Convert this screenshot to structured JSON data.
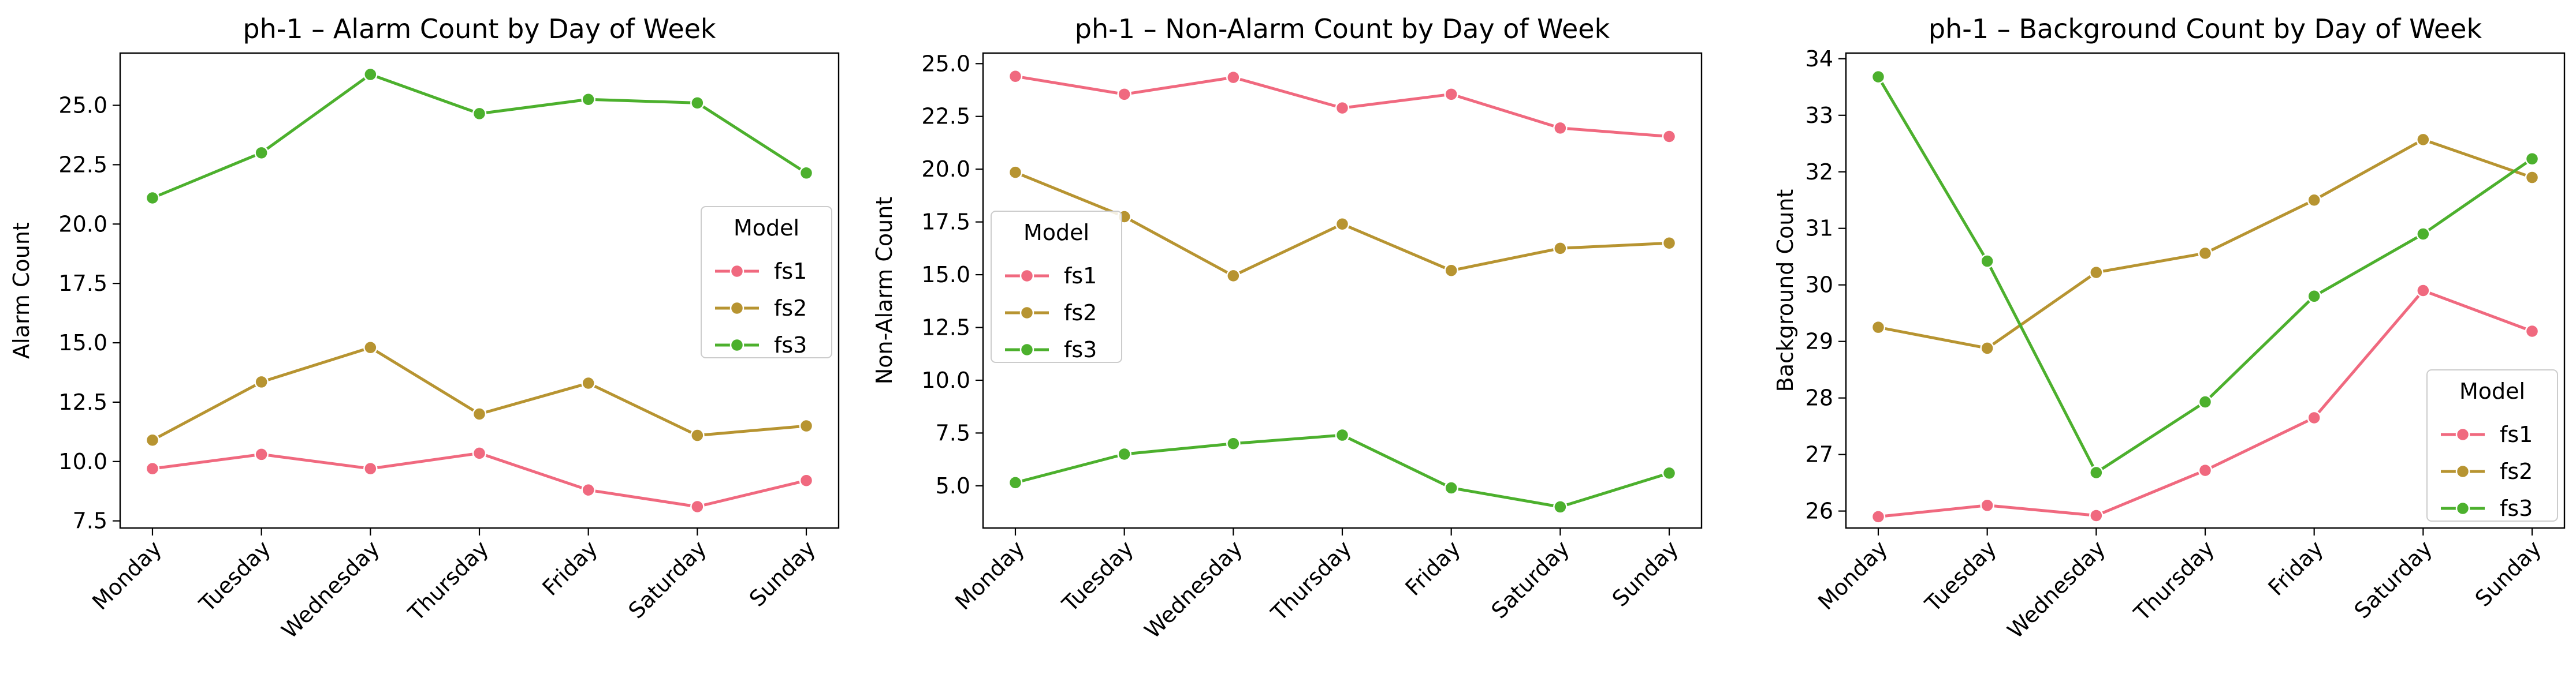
{
  "chart_data": [
    {
      "type": "line",
      "title": "ph-1 – Alarm Count by Day of Week",
      "xlabel": "",
      "ylabel": "Alarm Count",
      "categories": [
        "Monday",
        "Tuesday",
        "Wednesday",
        "Thursday",
        "Friday",
        "Saturday",
        "Sunday"
      ],
      "ylim": [
        7.2,
        27.2
      ],
      "yticks": [
        7.5,
        10.0,
        12.5,
        15.0,
        17.5,
        20.0,
        22.5,
        25.0
      ],
      "ytick_labels": [
        "7.5",
        "10.0",
        "12.5",
        "15.0",
        "17.5",
        "20.0",
        "22.5",
        "25.0"
      ],
      "legend": {
        "title": "Model",
        "placement": "center-right"
      },
      "grid": false,
      "series": [
        {
          "name": "fs1",
          "color": "#f0697f",
          "values": [
            9.7,
            10.3,
            9.7,
            10.35,
            8.8,
            8.1,
            9.2
          ]
        },
        {
          "name": "fs2",
          "color": "#b79431",
          "values": [
            10.9,
            13.35,
            14.8,
            12.0,
            13.3,
            11.1,
            11.5
          ]
        },
        {
          "name": "fs3",
          "color": "#4cb02d",
          "values": [
            21.1,
            23.0,
            26.3,
            24.65,
            25.25,
            25.1,
            22.15
          ]
        }
      ]
    },
    {
      "type": "line",
      "title": "ph-1 – Non-Alarm Count by Day of Week",
      "xlabel": "",
      "ylabel": "Non-Alarm Count",
      "categories": [
        "Monday",
        "Tuesday",
        "Wednesday",
        "Thursday",
        "Friday",
        "Saturday",
        "Sunday"
      ],
      "ylim": [
        3.0,
        25.5
      ],
      "yticks": [
        5.0,
        7.5,
        10.0,
        12.5,
        15.0,
        17.5,
        20.0,
        22.5,
        25.0
      ],
      "ytick_labels": [
        "5.0",
        "7.5",
        "10.0",
        "12.5",
        "15.0",
        "17.5",
        "20.0",
        "22.5",
        "25.0"
      ],
      "legend": {
        "title": "Model",
        "placement": "center-left"
      },
      "grid": false,
      "series": [
        {
          "name": "fs1",
          "color": "#f0697f",
          "values": [
            24.4,
            23.55,
            24.35,
            22.9,
            23.55,
            21.95,
            21.55
          ]
        },
        {
          "name": "fs2",
          "color": "#b79431",
          "values": [
            19.85,
            17.75,
            14.95,
            17.4,
            15.2,
            16.25,
            16.5
          ]
        },
        {
          "name": "fs3",
          "color": "#4cb02d",
          "values": [
            5.15,
            6.5,
            7.0,
            7.4,
            4.9,
            4.0,
            5.6
          ]
        }
      ]
    },
    {
      "type": "line",
      "title": "ph-1 – Background Count by Day of Week",
      "xlabel": "",
      "ylabel": "Background Count",
      "categories": [
        "Monday",
        "Tuesday",
        "Wednesday",
        "Thursday",
        "Friday",
        "Saturday",
        "Sunday"
      ],
      "ylim": [
        25.7,
        34.1
      ],
      "yticks": [
        26,
        27,
        28,
        29,
        30,
        31,
        32,
        33,
        34
      ],
      "ytick_labels": [
        "26",
        "27",
        "28",
        "29",
        "30",
        "31",
        "32",
        "33",
        "34"
      ],
      "legend": {
        "title": "Model",
        "placement": "lower-right"
      },
      "grid": false,
      "series": [
        {
          "name": "fs1",
          "color": "#f0697f",
          "values": [
            25.9,
            26.1,
            25.92,
            26.72,
            27.65,
            29.9,
            29.18
          ]
        },
        {
          "name": "fs2",
          "color": "#b79431",
          "values": [
            29.25,
            28.88,
            30.22,
            30.56,
            31.5,
            32.57,
            31.9
          ]
        },
        {
          "name": "fs3",
          "color": "#4cb02d",
          "values": [
            33.68,
            30.42,
            26.68,
            27.93,
            29.8,
            30.9,
            32.23
          ]
        }
      ]
    }
  ]
}
